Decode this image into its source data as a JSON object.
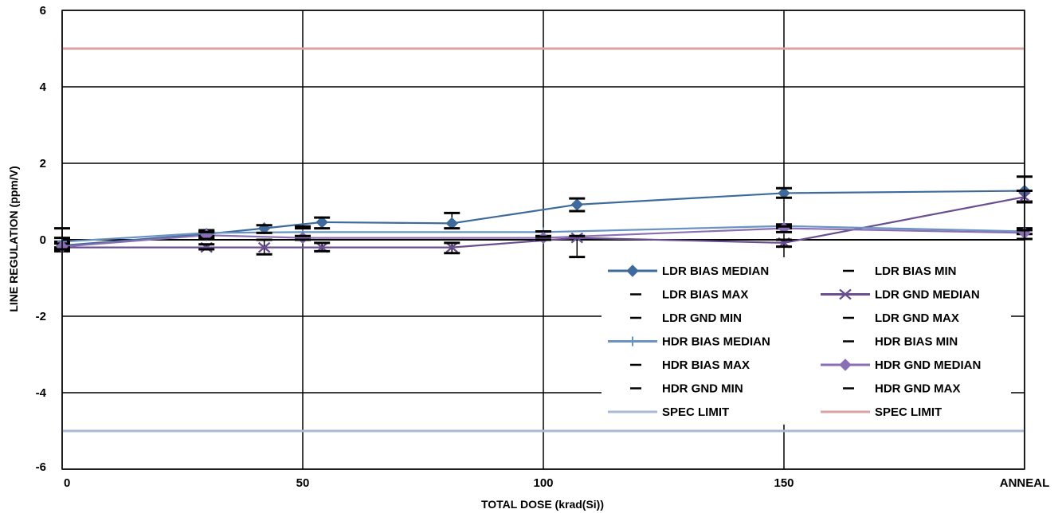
{
  "chart_data": {
    "type": "line",
    "title": "",
    "xlabel": "TOTAL DOSE (krad(Si))",
    "ylabel": "LINE REGULATION (ppm/V)",
    "xlim": [
      0,
      200
    ],
    "ylim": [
      -6,
      6
    ],
    "x_ticks": [
      {
        "value": 0,
        "label": "0"
      },
      {
        "value": 50,
        "label": "50"
      },
      {
        "value": 100,
        "label": "100"
      },
      {
        "value": 150,
        "label": "150"
      },
      {
        "value": 200,
        "label": "ANNEAL"
      }
    ],
    "y_ticks": [
      {
        "value": 6,
        "label": "6"
      },
      {
        "value": 4,
        "label": "4"
      },
      {
        "value": 2,
        "label": "2"
      },
      {
        "value": 0,
        "label": "0"
      },
      {
        "value": -2,
        "label": "-2"
      },
      {
        "value": -4,
        "label": "-4"
      },
      {
        "value": -6,
        "label": "-6"
      }
    ],
    "grid": true,
    "legend_position": "bottom-right",
    "series": [
      {
        "name": "LDR BIAS MEDIAN",
        "color": "#3e6b9b",
        "marker": "diamond",
        "line": true,
        "x": [
          0,
          30,
          42,
          54,
          81,
          107,
          150,
          200
        ],
        "y": [
          -0.15,
          0.15,
          0.3,
          0.46,
          0.43,
          0.92,
          1.22,
          1.28
        ]
      },
      {
        "name": "LDR BIAS MIN",
        "color": "#000000",
        "marker": "dash",
        "line": false,
        "x": [
          0,
          30,
          42,
          54,
          81,
          107,
          150,
          200
        ],
        "y": [
          -0.26,
          0.05,
          0.18,
          0.3,
          0.3,
          0.75,
          1.1,
          1.0
        ]
      },
      {
        "name": "LDR BIAS MAX",
        "color": "#000000",
        "marker": "dash",
        "line": false,
        "x": [
          0,
          30,
          42,
          54,
          81,
          107,
          150,
          200
        ],
        "y": [
          -0.05,
          0.25,
          0.38,
          0.58,
          0.7,
          1.08,
          1.35,
          1.65
        ]
      },
      {
        "name": "LDR GND MEDIAN",
        "color": "#6a4f90",
        "marker": "cross",
        "line": true,
        "x": [
          0,
          30,
          42,
          54,
          81,
          107,
          150,
          200
        ],
        "y": [
          -0.2,
          -0.2,
          -0.2,
          -0.2,
          -0.2,
          0.05,
          -0.08,
          1.12
        ]
      },
      {
        "name": "LDR GND MIN",
        "color": "#000000",
        "marker": "dash",
        "line": false,
        "x": [
          0,
          30,
          42,
          54,
          81,
          107,
          150,
          200
        ],
        "y": [
          -0.3,
          -0.25,
          -0.38,
          -0.3,
          -0.35,
          -0.45,
          -0.18,
          0.98
        ]
      },
      {
        "name": "LDR GND MAX",
        "color": "#000000",
        "marker": "dash",
        "line": false,
        "x": [
          0,
          30,
          42,
          54,
          81,
          107,
          150,
          200
        ],
        "y": [
          -0.1,
          -0.12,
          0.0,
          -0.08,
          -0.08,
          0.1,
          0.0,
          1.28
        ]
      },
      {
        "name": "HDR BIAS MEDIAN",
        "color": "#6a93c4",
        "marker": "plus",
        "line": true,
        "x": [
          0,
          30,
          50,
          100,
          150,
          200
        ],
        "y": [
          -0.05,
          0.18,
          0.2,
          0.2,
          0.36,
          0.22
        ]
      },
      {
        "name": "HDR BIAS MIN",
        "color": "#000000",
        "marker": "dash",
        "line": false,
        "x": [
          0,
          30,
          50,
          100,
          150,
          200
        ],
        "y": [
          -0.2,
          0.1,
          0.3,
          0.1,
          0.3,
          0.15
        ]
      },
      {
        "name": "HDR BIAS MAX",
        "color": "#000000",
        "marker": "dash",
        "line": false,
        "x": [
          0,
          30,
          50,
          100,
          150,
          200
        ],
        "y": [
          0.3,
          0.22,
          0.35,
          0.22,
          0.4,
          0.3
        ]
      },
      {
        "name": "HDR GND MEDIAN",
        "color": "#8a6fb4",
        "marker": "diamond",
        "line": true,
        "x": [
          0,
          30,
          50,
          100,
          150,
          200
        ],
        "y": [
          -0.18,
          0.12,
          0.05,
          0.05,
          0.3,
          0.18
        ]
      },
      {
        "name": "HDR GND MIN",
        "color": "#000000",
        "marker": "dash",
        "line": false,
        "x": [
          0,
          30,
          50,
          100,
          150,
          200
        ],
        "y": [
          -0.25,
          0.02,
          0.0,
          0.0,
          0.2,
          0.02
        ]
      },
      {
        "name": "HDR GND MAX",
        "color": "#000000",
        "marker": "dash",
        "line": false,
        "x": [
          0,
          30,
          50,
          100,
          150,
          200
        ],
        "y": [
          0.05,
          0.2,
          0.1,
          0.08,
          0.35,
          0.25
        ]
      },
      {
        "name": "SPEC LIMIT",
        "color": "#a9b9d6",
        "marker": "none",
        "line": true,
        "x": [
          0,
          200
        ],
        "y": [
          -5,
          -5
        ]
      },
      {
        "name": "SPEC LIMIT",
        "color": "#d9a3a3",
        "marker": "none",
        "line": true,
        "x": [
          0,
          200
        ],
        "y": [
          5,
          5
        ]
      }
    ]
  }
}
